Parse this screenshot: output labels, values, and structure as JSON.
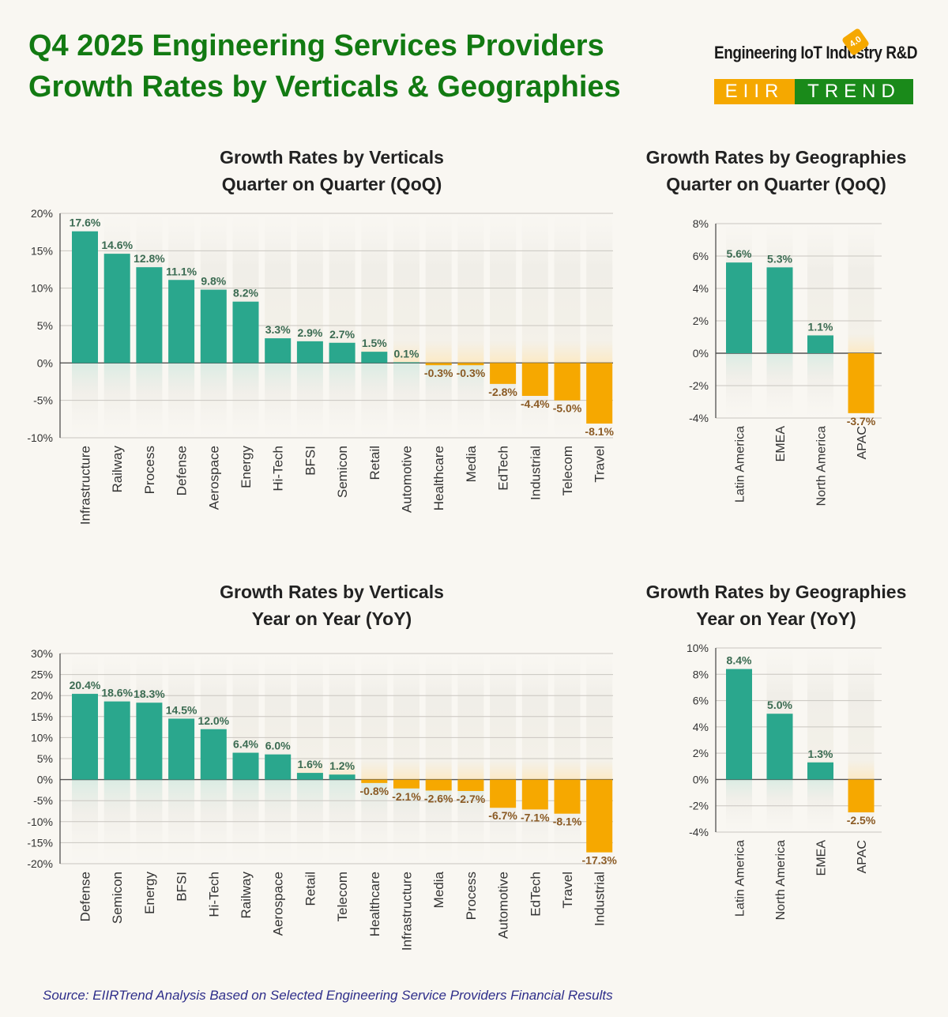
{
  "header": {
    "title_line1": "Q4 2025 Engineering Services Providers",
    "title_line2": "Growth Rates by Verticals & Geographies"
  },
  "logo": {
    "top_text": "Engineering IoT Industry R&D",
    "badge": "4.0",
    "left_text": "EIIR",
    "right_text": "TREND"
  },
  "colors": {
    "positive": "#2aa78d",
    "negative": "#f6a800",
    "title": "#127a12"
  },
  "chart_data": [
    {
      "id": "verticals-qoq",
      "type": "bar",
      "title": "Growth Rates by Verticals",
      "subtitle": "Quarter on Quarter (QoQ)",
      "categories": [
        "Infrastructure",
        "Railway",
        "Process",
        "Defense",
        "Aerospace",
        "Energy",
        "Hi-Tech",
        "BFSI",
        "Semicon",
        "Retail",
        "Automotive",
        "Healthcare",
        "Media",
        "EdTech",
        "Industrial",
        "Telecom",
        "Travel"
      ],
      "values": [
        17.6,
        14.6,
        12.8,
        11.1,
        9.8,
        8.2,
        3.3,
        2.9,
        2.7,
        1.5,
        0.1,
        -0.3,
        -0.3,
        -2.8,
        -4.4,
        -5.0,
        -8.1
      ],
      "value_labels": [
        "17.6%",
        "14.6%",
        "12.8%",
        "11.1%",
        "9.8%",
        "8.2%",
        "3.3%",
        "2.9%",
        "2.7%",
        "1.5%",
        "0.1%",
        "-0.3%",
        "-0.3%",
        "-2.8%",
        "-4.4%",
        "-5.0%",
        "-8.1%"
      ],
      "ylim": [
        -10,
        20
      ],
      "yticks": [
        -10,
        -5,
        0,
        5,
        10,
        15,
        20
      ],
      "ytick_labels": [
        "-10%",
        "-5%",
        "0%",
        "5%",
        "10%",
        "15%",
        "20%"
      ]
    },
    {
      "id": "geo-qoq",
      "type": "bar",
      "title": "Growth Rates by Geographies",
      "subtitle": "Quarter on Quarter (QoQ)",
      "categories": [
        "Latin America",
        "EMEA",
        "North America",
        "APAC"
      ],
      "values": [
        5.6,
        5.3,
        1.1,
        -3.7
      ],
      "value_labels": [
        "5.6%",
        "5.3%",
        "1.1%",
        "-3.7%"
      ],
      "ylim": [
        -4,
        8
      ],
      "yticks": [
        -4,
        -2,
        0,
        2,
        4,
        6,
        8
      ],
      "ytick_labels": [
        "-4%",
        "-2%",
        "0%",
        "2%",
        "4%",
        "6%",
        "8%"
      ]
    },
    {
      "id": "verticals-yoy",
      "type": "bar",
      "title": "Growth Rates by Verticals",
      "subtitle": "Year on Year (YoY)",
      "categories": [
        "Defense",
        "Semicon",
        "Energy",
        "BFSI",
        "Hi-Tech",
        "Railway",
        "Aerospace",
        "Retail",
        "Telecom",
        "Healthcare",
        "Infrastructure",
        "Media",
        "Process",
        "Automotive",
        "EdTech",
        "Travel",
        "Industrial"
      ],
      "values": [
        20.4,
        18.6,
        18.3,
        14.5,
        12.0,
        6.4,
        6.0,
        1.6,
        1.2,
        -0.8,
        -2.1,
        -2.6,
        -2.7,
        -6.7,
        -7.1,
        -8.1,
        -17.3
      ],
      "value_labels": [
        "20.4%",
        "18.6%",
        "18.3%",
        "14.5%",
        "12.0%",
        "6.4%",
        "6.0%",
        "1.6%",
        "1.2%",
        "-0.8%",
        "-2.1%",
        "-2.6%",
        "-2.7%",
        "-6.7%",
        "-7.1%",
        "-8.1%",
        "-17.3%"
      ],
      "ylim": [
        -20,
        30
      ],
      "yticks": [
        -20,
        -15,
        -10,
        -5,
        0,
        5,
        10,
        15,
        20,
        25,
        30
      ],
      "ytick_labels": [
        "-20%",
        "-15%",
        "-10%",
        "-5%",
        "0%",
        "5%",
        "10%",
        "15%",
        "20%",
        "25%",
        "30%"
      ]
    },
    {
      "id": "geo-yoy",
      "type": "bar",
      "title": "Growth Rates by Geographies",
      "subtitle": "Year on Year (YoY)",
      "categories": [
        "Latin America",
        "North America",
        "EMEA",
        "APAC"
      ],
      "values": [
        8.4,
        5.0,
        1.3,
        -2.5
      ],
      "value_labels": [
        "8.4%",
        "5.0%",
        "1.3%",
        "-2.5%"
      ],
      "ylim": [
        -4,
        10
      ],
      "yticks": [
        -4,
        -2,
        0,
        2,
        4,
        6,
        8,
        10
      ],
      "ytick_labels": [
        "-4%",
        "-2%",
        "0%",
        "2%",
        "4%",
        "6%",
        "8%",
        "10%"
      ]
    }
  ],
  "source": "Source: EIIRTrend Analysis Based on Selected Engineering Service Providers Financial Results"
}
